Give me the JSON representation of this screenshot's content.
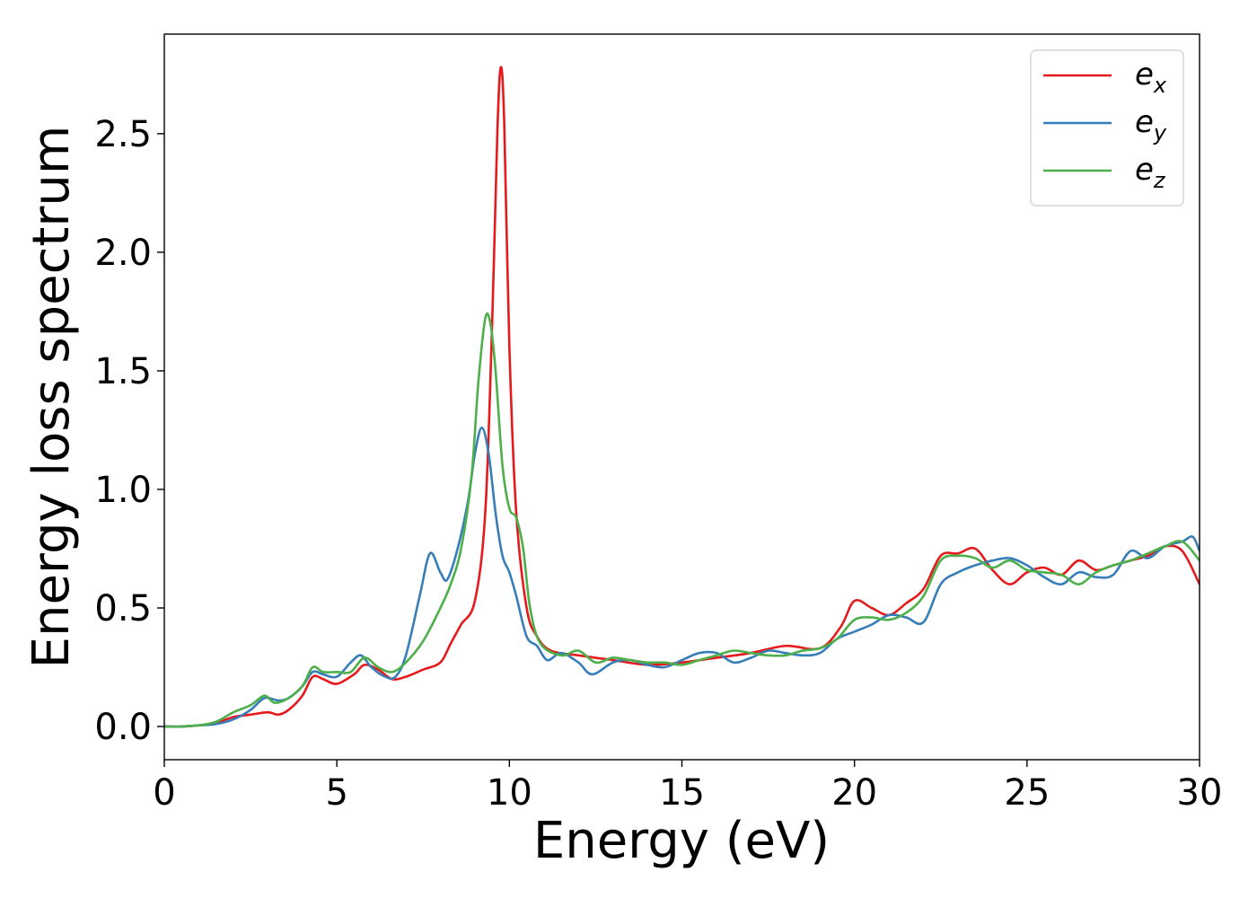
{
  "chart_data": {
    "type": "line",
    "title": "",
    "xlabel": "Energy (eV)",
    "ylabel": "Energy loss spectrum",
    "xlim": [
      0,
      30
    ],
    "ylim": [
      -0.14,
      2.92
    ],
    "xticks": [
      0,
      5,
      10,
      15,
      20,
      25,
      30
    ],
    "xtick_labels": [
      "0",
      "5",
      "10",
      "15",
      "20",
      "25",
      "30"
    ],
    "yticks": [
      0.0,
      0.5,
      1.0,
      1.5,
      2.0,
      2.5
    ],
    "ytick_labels": [
      "0.0",
      "0.5",
      "1.0",
      "1.5",
      "2.0",
      "2.5"
    ],
    "grid": false,
    "legend_position": "top-right",
    "series": [
      {
        "name": "e",
        "subscript": "x",
        "color": "#e41a1c",
        "x": [
          0,
          0.5,
          1,
          1.5,
          2,
          2.5,
          3,
          3.3,
          3.6,
          4,
          4.3,
          4.6,
          5,
          5.5,
          5.8,
          6.2,
          6.6,
          7,
          7.5,
          8,
          8.3,
          8.6,
          9,
          9.3,
          9.5,
          9.65,
          9.75,
          9.85,
          10,
          10.2,
          10.5,
          10.8,
          11.2,
          12,
          13,
          14,
          15,
          16,
          17,
          18,
          19,
          19.6,
          20,
          20.5,
          21,
          21.5,
          22,
          22.5,
          23,
          23.5,
          24,
          24.5,
          25,
          25.5,
          26,
          26.5,
          27,
          27.5,
          28,
          28.5,
          29,
          29.5,
          30
        ],
        "y": [
          0,
          0,
          0.005,
          0.015,
          0.04,
          0.05,
          0.06,
          0.05,
          0.07,
          0.13,
          0.21,
          0.2,
          0.18,
          0.22,
          0.26,
          0.24,
          0.2,
          0.21,
          0.24,
          0.27,
          0.35,
          0.43,
          0.53,
          0.9,
          1.7,
          2.5,
          2.78,
          2.55,
          1.6,
          0.9,
          0.5,
          0.38,
          0.32,
          0.3,
          0.28,
          0.26,
          0.27,
          0.29,
          0.31,
          0.34,
          0.33,
          0.42,
          0.53,
          0.5,
          0.47,
          0.52,
          0.58,
          0.72,
          0.73,
          0.75,
          0.66,
          0.6,
          0.65,
          0.67,
          0.64,
          0.7,
          0.66,
          0.68,
          0.7,
          0.72,
          0.76,
          0.74,
          0.6
        ]
      },
      {
        "name": "e",
        "subscript": "y",
        "color": "#377eb8",
        "x": [
          0,
          0.5,
          1,
          1.5,
          2,
          2.5,
          2.9,
          3.3,
          3.6,
          4,
          4.3,
          4.6,
          5,
          5.4,
          5.7,
          6,
          6.4,
          6.7,
          7,
          7.4,
          7.7,
          8,
          8.2,
          8.5,
          8.8,
          9,
          9.2,
          9.4,
          9.6,
          9.8,
          10,
          10.2,
          10.5,
          10.8,
          11.1,
          11.5,
          12,
          12.4,
          13,
          13.5,
          14,
          14.5,
          15,
          15.5,
          16,
          16.5,
          17,
          17.5,
          18,
          18.5,
          19,
          19.5,
          20,
          20.5,
          21,
          21.5,
          22,
          22.5,
          23,
          23.5,
          24,
          24.5,
          25,
          25.5,
          26,
          26.5,
          27,
          27.5,
          28,
          28.5,
          29,
          29.5,
          29.8,
          30
        ],
        "y": [
          0,
          0,
          0.005,
          0.01,
          0.03,
          0.07,
          0.12,
          0.11,
          0.12,
          0.17,
          0.23,
          0.22,
          0.21,
          0.27,
          0.3,
          0.25,
          0.21,
          0.21,
          0.3,
          0.55,
          0.73,
          0.65,
          0.62,
          0.75,
          0.95,
          1.15,
          1.26,
          1.15,
          0.9,
          0.72,
          0.65,
          0.55,
          0.38,
          0.34,
          0.28,
          0.31,
          0.27,
          0.22,
          0.27,
          0.28,
          0.26,
          0.25,
          0.28,
          0.31,
          0.31,
          0.27,
          0.29,
          0.32,
          0.31,
          0.3,
          0.31,
          0.37,
          0.4,
          0.43,
          0.47,
          0.46,
          0.44,
          0.6,
          0.65,
          0.68,
          0.7,
          0.71,
          0.68,
          0.63,
          0.6,
          0.65,
          0.63,
          0.64,
          0.74,
          0.71,
          0.76,
          0.78,
          0.8,
          0.74
        ]
      },
      {
        "name": "e",
        "subscript": "z",
        "color": "#4daf4a",
        "x": [
          0,
          0.5,
          1,
          1.5,
          2,
          2.5,
          2.9,
          3.2,
          3.6,
          4,
          4.3,
          4.6,
          5,
          5.4,
          5.8,
          6.2,
          6.6,
          7,
          7.5,
          8,
          8.3,
          8.6,
          8.9,
          9.1,
          9.3,
          9.45,
          9.6,
          9.8,
          10,
          10.2,
          10.4,
          10.6,
          10.9,
          11.5,
          12,
          12.5,
          13,
          13.5,
          14,
          14.5,
          15,
          15.5,
          16,
          16.5,
          17,
          17.5,
          18,
          18.5,
          19,
          19.5,
          20,
          20.5,
          21,
          21.5,
          22,
          22.5,
          23,
          23.5,
          24,
          24.5,
          25,
          25.5,
          26,
          26.5,
          27,
          27.5,
          28,
          28.5,
          29,
          29.5,
          30
        ],
        "y": [
          0,
          0,
          0.005,
          0.02,
          0.06,
          0.09,
          0.13,
          0.1,
          0.12,
          0.17,
          0.25,
          0.23,
          0.23,
          0.23,
          0.29,
          0.25,
          0.23,
          0.27,
          0.36,
          0.5,
          0.6,
          0.75,
          1.05,
          1.45,
          1.72,
          1.7,
          1.5,
          1.1,
          0.92,
          0.88,
          0.75,
          0.5,
          0.35,
          0.3,
          0.32,
          0.27,
          0.29,
          0.28,
          0.27,
          0.27,
          0.26,
          0.28,
          0.3,
          0.32,
          0.31,
          0.3,
          0.3,
          0.32,
          0.33,
          0.37,
          0.45,
          0.46,
          0.45,
          0.48,
          0.55,
          0.7,
          0.72,
          0.71,
          0.67,
          0.7,
          0.66,
          0.65,
          0.64,
          0.6,
          0.65,
          0.68,
          0.7,
          0.73,
          0.76,
          0.78,
          0.7
        ]
      }
    ]
  }
}
